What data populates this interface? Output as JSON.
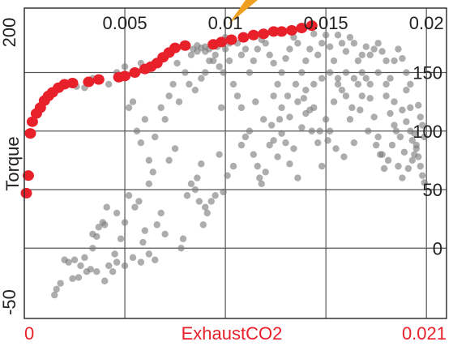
{
  "chart_data": {
    "type": "scatter",
    "xlabel": "ExhaustCO2",
    "ylabel": "Torque",
    "xlim": [
      0,
      0.021
    ],
    "xlim_labels": [
      "0",
      "0.021"
    ],
    "ylim": [
      -60,
      205
    ],
    "top_ticks": [
      {
        "value": 0.005,
        "label": "0.005"
      },
      {
        "value": 0.01,
        "label": "0.01"
      },
      {
        "value": 0.015,
        "label": "0.015"
      },
      {
        "value": 0.02,
        "label": "0.02"
      }
    ],
    "right_ticks": [
      {
        "value": 150,
        "label": "150"
      },
      {
        "value": 100,
        "label": "100"
      },
      {
        "value": 50,
        "label": "50"
      },
      {
        "value": 0,
        "label": "0"
      }
    ],
    "left_ticks": [
      {
        "value": 200,
        "label": "200"
      },
      {
        "value": -50,
        "label": "-50"
      }
    ],
    "grid": true,
    "colors": {
      "highlight": "#e8202a",
      "points": "#7a7a7a",
      "arrow": "#f0a020"
    },
    "series": [
      {
        "role": "highlighted",
        "points": [
          [
            0.0001,
            47
          ],
          [
            0.0002,
            62
          ],
          [
            0.0003,
            98
          ],
          [
            0.0004,
            108
          ],
          [
            0.0006,
            115
          ],
          [
            0.0008,
            120
          ],
          [
            0.001,
            126
          ],
          [
            0.0012,
            130
          ],
          [
            0.0014,
            133
          ],
          [
            0.0017,
            137
          ],
          [
            0.002,
            140
          ],
          [
            0.0024,
            141
          ],
          [
            0.0032,
            142
          ],
          [
            0.0037,
            144
          ],
          [
            0.0047,
            146
          ],
          [
            0.005,
            147
          ],
          [
            0.0055,
            150
          ],
          [
            0.006,
            153
          ],
          [
            0.0063,
            155
          ],
          [
            0.0066,
            158
          ],
          [
            0.0069,
            163
          ],
          [
            0.0072,
            167
          ],
          [
            0.0075,
            171
          ],
          [
            0.008,
            173
          ],
          [
            0.0094,
            174
          ],
          [
            0.0098,
            176
          ],
          [
            0.0103,
            178
          ],
          [
            0.0109,
            180
          ],
          [
            0.0114,
            182
          ],
          [
            0.0119,
            183
          ],
          [
            0.0124,
            185
          ],
          [
            0.0128,
            185
          ],
          [
            0.0133,
            186
          ],
          [
            0.0138,
            188
          ],
          [
            0.0143,
            190
          ]
        ]
      },
      {
        "role": "background",
        "points": [
          [
            0.0015,
            -40
          ],
          [
            0.0016,
            -35
          ],
          [
            0.0018,
            -30
          ],
          [
            0.002,
            -10
          ],
          [
            0.0022,
            -12
          ],
          [
            0.0025,
            -10
          ],
          [
            0.0027,
            -25
          ],
          [
            0.003,
            -8
          ],
          [
            0.0024,
            -26
          ],
          [
            0.0028,
            -15
          ],
          [
            0.0034,
            0
          ],
          [
            0.0034,
            12
          ],
          [
            0.0036,
            10
          ],
          [
            0.0037,
            18
          ],
          [
            0.004,
            20
          ],
          [
            0.0042,
            -15
          ],
          [
            0.0045,
            -5
          ],
          [
            0.0046,
            30
          ],
          [
            0.0048,
            8
          ],
          [
            0.005,
            22
          ],
          [
            0.0036,
            -20
          ],
          [
            0.0039,
            22
          ],
          [
            0.0041,
            35
          ],
          [
            0.0052,
            45
          ],
          [
            0.0055,
            35
          ],
          [
            0.0057,
            40
          ],
          [
            0.0059,
            5
          ],
          [
            0.006,
            15
          ],
          [
            0.0062,
            55
          ],
          [
            0.0064,
            65
          ],
          [
            0.0066,
            20
          ],
          [
            0.0068,
            30
          ],
          [
            0.007,
            12
          ],
          [
            0.0072,
            75
          ],
          [
            0.0075,
            85
          ],
          [
            0.0078,
            0
          ],
          [
            0.0079,
            8
          ],
          [
            0.0081,
            45
          ],
          [
            0.0083,
            55
          ],
          [
            0.0085,
            50
          ],
          [
            0.0086,
            60
          ],
          [
            0.0087,
            40
          ],
          [
            0.0088,
            72
          ],
          [
            0.0089,
            20
          ],
          [
            0.009,
            35
          ],
          [
            0.0091,
            30
          ],
          [
            0.0093,
            40
          ],
          [
            0.0095,
            45
          ],
          [
            0.0097,
            80
          ],
          [
            0.0098,
            120
          ],
          [
            0.0056,
            100
          ],
          [
            0.0058,
            90
          ],
          [
            0.006,
            110
          ],
          [
            0.0062,
            75
          ],
          [
            0.0065,
            95
          ],
          [
            0.0068,
            120
          ],
          [
            0.007,
            110
          ],
          [
            0.0072,
            130
          ],
          [
            0.0074,
            140
          ],
          [
            0.0077,
            125
          ],
          [
            0.008,
            150
          ],
          [
            0.0082,
            140
          ],
          [
            0.0085,
            135
          ],
          [
            0.0088,
            145
          ],
          [
            0.009,
            150
          ],
          [
            0.0092,
            160
          ],
          [
            0.0095,
            165
          ],
          [
            0.0097,
            155
          ],
          [
            0.01,
            170
          ],
          [
            0.0102,
            160
          ],
          [
            0.0046,
            150
          ],
          [
            0.005,
            155
          ],
          [
            0.0052,
            120
          ],
          [
            0.0054,
            125
          ],
          [
            0.0042,
            140
          ],
          [
            0.0038,
            145
          ],
          [
            0.0034,
            145
          ],
          [
            0.003,
            137
          ],
          [
            0.0026,
            138
          ],
          [
            0.0058,
            158
          ],
          [
            0.0066,
            160
          ],
          [
            0.007,
            163
          ],
          [
            0.0076,
            158
          ],
          [
            0.0083,
            165
          ],
          [
            0.0086,
            168
          ],
          [
            0.009,
            172
          ],
          [
            0.0094,
            160
          ],
          [
            0.0099,
            150
          ],
          [
            0.0104,
            140
          ],
          [
            0.0106,
            130
          ],
          [
            0.0108,
            120
          ],
          [
            0.011,
            95
          ],
          [
            0.0112,
            100
          ],
          [
            0.0114,
            80
          ],
          [
            0.0116,
            70
          ],
          [
            0.0117,
            60
          ],
          [
            0.0118,
            55
          ],
          [
            0.012,
            65
          ],
          [
            0.0122,
            88
          ],
          [
            0.0124,
            92
          ],
          [
            0.0126,
            78
          ],
          [
            0.0128,
            98
          ],
          [
            0.013,
            90
          ],
          [
            0.0132,
            72
          ],
          [
            0.0134,
            85
          ],
          [
            0.0136,
            60
          ],
          [
            0.0138,
            103
          ],
          [
            0.014,
            115
          ],
          [
            0.0142,
            118
          ],
          [
            0.0144,
            120
          ],
          [
            0.0146,
            90
          ],
          [
            0.0148,
            70
          ],
          [
            0.015,
            110
          ],
          [
            0.0152,
            100
          ],
          [
            0.0154,
            125
          ],
          [
            0.0156,
            140
          ],
          [
            0.0158,
            135
          ],
          [
            0.016,
            130
          ],
          [
            0.0162,
            110
          ],
          [
            0.0164,
            90
          ],
          [
            0.0166,
            140
          ],
          [
            0.0168,
            150
          ],
          [
            0.017,
            145
          ],
          [
            0.0172,
            128
          ],
          [
            0.0174,
            112
          ],
          [
            0.0176,
            95
          ],
          [
            0.0178,
            80
          ],
          [
            0.018,
            130
          ],
          [
            0.0182,
            115
          ],
          [
            0.0184,
            105
          ],
          [
            0.0186,
            70
          ],
          [
            0.0188,
            60
          ],
          [
            0.019,
            135
          ],
          [
            0.0192,
            120
          ],
          [
            0.0194,
            98
          ],
          [
            0.0195,
            88
          ],
          [
            0.0196,
            78
          ],
          [
            0.0197,
            70
          ],
          [
            0.0198,
            62
          ],
          [
            0.0199,
            56
          ],
          [
            0.0196,
            122
          ],
          [
            0.0197,
            112
          ],
          [
            0.0198,
            105
          ],
          [
            0.0199,
            95
          ],
          [
            0.0195,
            85
          ],
          [
            0.0192,
            140
          ],
          [
            0.019,
            150
          ],
          [
            0.0188,
            162
          ],
          [
            0.0186,
            170
          ],
          [
            0.0184,
            160
          ],
          [
            0.0182,
            145
          ],
          [
            0.018,
            160
          ],
          [
            0.0178,
            168
          ],
          [
            0.0176,
            175
          ],
          [
            0.0174,
            170
          ],
          [
            0.0172,
            165
          ],
          [
            0.017,
            172
          ],
          [
            0.0168,
            165
          ],
          [
            0.0166,
            160
          ],
          [
            0.0164,
            175
          ],
          [
            0.0162,
            180
          ],
          [
            0.016,
            168
          ],
          [
            0.0158,
            175
          ],
          [
            0.0156,
            182
          ],
          [
            0.0154,
            160
          ],
          [
            0.0152,
            172
          ],
          [
            0.015,
            182
          ],
          [
            0.0148,
            175
          ],
          [
            0.0146,
            165
          ],
          [
            0.0144,
            183
          ],
          [
            0.0142,
            170
          ],
          [
            0.014,
            160
          ],
          [
            0.0138,
            150
          ],
          [
            0.0136,
            175
          ],
          [
            0.0134,
            180
          ],
          [
            0.0132,
            170
          ],
          [
            0.013,
            162
          ],
          [
            0.0128,
            150
          ],
          [
            0.0126,
            140
          ],
          [
            0.0124,
            158
          ],
          [
            0.0122,
            165
          ],
          [
            0.012,
            175
          ],
          [
            0.0118,
            178
          ],
          [
            0.0116,
            170
          ],
          [
            0.0114,
            160
          ],
          [
            0.0112,
            150
          ],
          [
            0.011,
            170
          ],
          [
            0.0108,
            165
          ],
          [
            0.0106,
            175
          ],
          [
            0.0104,
            178
          ],
          [
            0.0102,
            175
          ],
          [
            0.01,
            180
          ],
          [
            0.0098,
            176
          ],
          [
            0.0096,
            172
          ],
          [
            0.0094,
            175
          ],
          [
            0.0092,
            170
          ],
          [
            0.009,
            168
          ],
          [
            0.0088,
            171
          ],
          [
            0.0086,
            173
          ],
          [
            0.0084,
            170
          ],
          [
            0.0124,
            130
          ],
          [
            0.0128,
            120
          ],
          [
            0.0132,
            112
          ],
          [
            0.0136,
            125
          ],
          [
            0.014,
            135
          ],
          [
            0.0144,
            140
          ],
          [
            0.0148,
            145
          ],
          [
            0.0152,
            150
          ],
          [
            0.0156,
            145
          ],
          [
            0.016,
            150
          ],
          [
            0.0164,
            145
          ],
          [
            0.0168,
            130
          ],
          [
            0.0172,
            140
          ],
          [
            0.0176,
            150
          ],
          [
            0.018,
            140
          ],
          [
            0.0184,
            125
          ],
          [
            0.0188,
            118
          ],
          [
            0.019,
            108
          ],
          [
            0.0192,
            100
          ],
          [
            0.0193,
            92
          ],
          [
            0.0194,
            80
          ],
          [
            0.0193,
            75
          ],
          [
            0.0191,
            68
          ],
          [
            0.0189,
            82
          ],
          [
            0.0187,
            95
          ],
          [
            0.0185,
            100
          ],
          [
            0.0183,
            88
          ],
          [
            0.0181,
            75
          ],
          [
            0.0179,
            68
          ],
          [
            0.0177,
            80
          ],
          [
            0.0115,
            125
          ],
          [
            0.0119,
            110
          ],
          [
            0.0123,
            105
          ],
          [
            0.0127,
            110
          ],
          [
            0.0131,
            130
          ],
          [
            0.0135,
            140
          ],
          [
            0.0139,
            128
          ],
          [
            0.0143,
            100
          ],
          [
            0.0147,
            100
          ],
          [
            0.0151,
            92
          ],
          [
            0.0155,
            85
          ],
          [
            0.0159,
            78
          ],
          [
            0.0163,
            120
          ],
          [
            0.0167,
            118
          ],
          [
            0.0171,
            100
          ],
          [
            0.0175,
            88
          ],
          [
            0.0108,
            88
          ],
          [
            0.0104,
            70
          ],
          [
            0.0101,
            62
          ],
          [
            0.0099,
            48
          ],
          [
            0.0065,
            -10
          ],
          [
            0.0062,
            -5
          ],
          [
            0.0058,
            -12
          ],
          [
            0.0054,
            -8
          ],
          [
            0.005,
            -15
          ],
          [
            0.0046,
            -12
          ],
          [
            0.0044,
            -20
          ],
          [
            0.004,
            -28
          ],
          [
            0.0033,
            -18
          ],
          [
            0.0031,
            -20
          ]
        ]
      }
    ]
  }
}
